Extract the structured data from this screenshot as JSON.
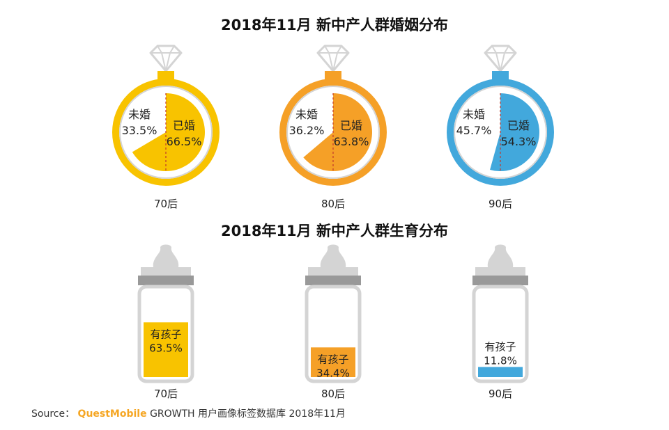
{
  "colors": {
    "yellow": "#f8c300",
    "orange": "#f5a027",
    "blue": "#42a8dc",
    "grey": "#d4d4d4",
    "dark_grey": "#999999",
    "divider": "#c0392b"
  },
  "chart_data": [
    {
      "type": "pie",
      "title": "2018年11月 新中产人群婚姻分布",
      "groups": [
        {
          "label": "70后",
          "color_key": "yellow",
          "slices": [
            {
              "name": "已婚",
              "value": 66.5,
              "label": "66.5%"
            },
            {
              "name": "未婚",
              "value": 33.5,
              "label": "33.5%"
            }
          ]
        },
        {
          "label": "80后",
          "color_key": "orange",
          "slices": [
            {
              "name": "已婚",
              "value": 63.8,
              "label": "63.8%"
            },
            {
              "name": "未婚",
              "value": 36.2,
              "label": "36.2%"
            }
          ]
        },
        {
          "label": "90后",
          "color_key": "blue",
          "slices": [
            {
              "name": "已婚",
              "value": 54.3,
              "label": "54.3%"
            },
            {
              "name": "未婚",
              "value": 45.7,
              "label": "45.7%"
            }
          ]
        }
      ]
    },
    {
      "type": "bar",
      "title": "2018年11月 新中产人群生育分布",
      "categories": [
        "70后",
        "80后",
        "90后"
      ],
      "series": [
        {
          "name": "有孩子",
          "values": [
            63.5,
            34.4,
            11.8
          ],
          "labels": [
            "63.5%",
            "34.4%",
            "11.8%"
          ]
        }
      ],
      "ylim": [
        0,
        100
      ]
    }
  ],
  "source": {
    "prefix": "Source：",
    "brand": "QuestMobile",
    "rest": "GROWTH 用户画像标签数据库 2018年11月"
  }
}
